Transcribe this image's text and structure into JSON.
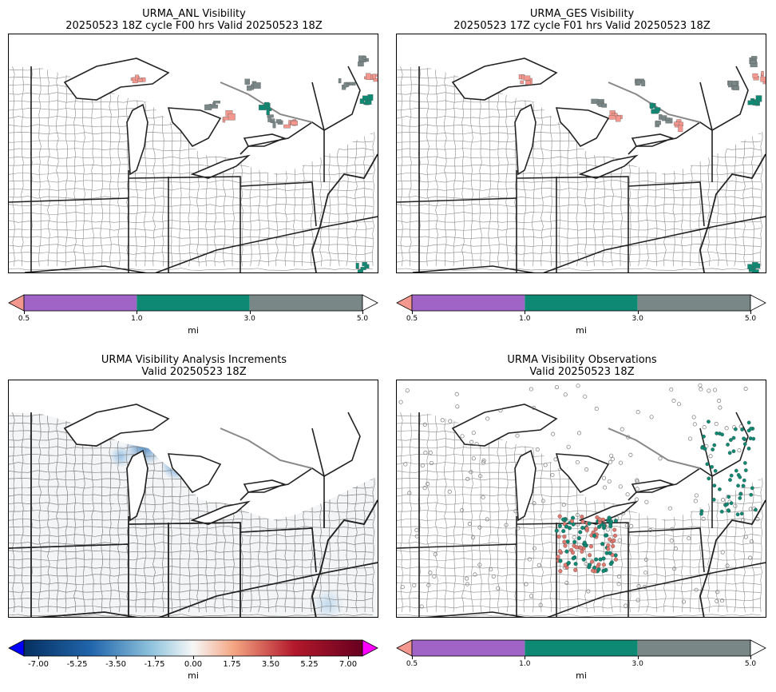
{
  "panels": [
    {
      "id": "anl",
      "title_line1": "URMA_ANL Visibility",
      "title_line2": "20250523 18Z cycle F00 hrs Valid 20250523 18Z",
      "unit": "mi",
      "colorbar": {
        "type": "discrete",
        "ticks": [
          "0.5",
          "1.0",
          "3.0",
          "5.0"
        ],
        "colors": {
          "under": "#f4978e",
          "b1": "#a064c6",
          "b2": "#0e8a74",
          "b3": "#7a8787",
          "over": "#ffffff"
        }
      }
    },
    {
      "id": "ges",
      "title_line1": "URMA_GES Visibility",
      "title_line2": "20250523 17Z cycle F01 hrs Valid 20250523 18Z",
      "unit": "mi",
      "colorbar": {
        "type": "discrete",
        "ticks": [
          "0.5",
          "1.0",
          "3.0",
          "5.0"
        ],
        "colors": {
          "under": "#f4978e",
          "b1": "#a064c6",
          "b2": "#0e8a74",
          "b3": "#7a8787",
          "over": "#ffffff"
        }
      }
    },
    {
      "id": "inc",
      "title_line1": "URMA Visibility Analysis Increments",
      "title_line2": "Valid 20250523 18Z",
      "unit": "mi",
      "colorbar": {
        "type": "diverging",
        "ticks": [
          "-7.00",
          "-5.25",
          "-3.50",
          "-1.75",
          "0.00",
          "1.75",
          "3.50",
          "5.25",
          "7.00"
        ],
        "colors": {
          "under": "#0000ff",
          "over": "#ff00ff",
          "neg": "#053061",
          "pos": "#67001f"
        }
      }
    },
    {
      "id": "obs",
      "title_line1": "URMA Visibility Observations",
      "title_line2": "Valid 20250523 18Z",
      "unit": "mi",
      "colorbar": {
        "type": "discrete",
        "ticks": [
          "0.5",
          "1.0",
          "3.0",
          "5.0"
        ],
        "colors": {
          "under": "#f4978e",
          "b1": "#a064c6",
          "b2": "#0e8a74",
          "b3": "#7a8787",
          "over": "#ffffff"
        }
      }
    }
  ]
}
